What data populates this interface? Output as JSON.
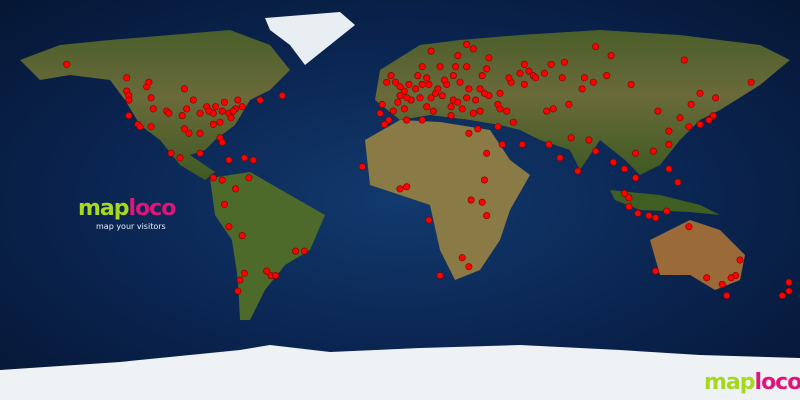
{
  "logo": {
    "part1": "map",
    "part2": "loco",
    "tagline": "map your visitors"
  },
  "corner_logo": {
    "part1": "map",
    "part2": "loco"
  },
  "colors": {
    "visitor_dot": "#ff0000",
    "logo_green": "#a8d81e",
    "logo_pink": "#e0157a",
    "ocean": "#0a2450"
  },
  "projection": "equirectangular",
  "visitors": [
    [
      -150,
      61
    ],
    [
      -123,
      49
    ],
    [
      -122,
      47
    ],
    [
      -122,
      45
    ],
    [
      -122,
      38
    ],
    [
      -118,
      34
    ],
    [
      -117,
      33
    ],
    [
      -112,
      33
    ],
    [
      -105,
      40
    ],
    [
      -97,
      32
    ],
    [
      -95,
      30
    ],
    [
      -90,
      30
    ],
    [
      -84,
      34
    ],
    [
      -81,
      28
    ],
    [
      -80,
      26
    ],
    [
      -77,
      39
    ],
    [
      -74,
      41
    ],
    [
      -71,
      42
    ],
    [
      -73,
      45
    ],
    [
      -79,
      44
    ],
    [
      -83,
      42
    ],
    [
      -87,
      42
    ],
    [
      -93,
      45
    ],
    [
      -90,
      39
    ],
    [
      -86,
      40
    ],
    [
      -81,
      35
    ],
    [
      -76,
      37
    ],
    [
      -75,
      40
    ],
    [
      -80,
      40
    ],
    [
      -84,
      39
    ],
    [
      -96,
      41
    ],
    [
      -98,
      38
    ],
    [
      -104,
      39
    ],
    [
      -111,
      41
    ],
    [
      -112,
      46
    ],
    [
      -114,
      51
    ],
    [
      -113,
      53
    ],
    [
      -123,
      55
    ],
    [
      -97,
      50
    ],
    [
      -63,
      45
    ],
    [
      -53,
      47
    ],
    [
      -99,
      19
    ],
    [
      -103,
      21
    ],
    [
      -90,
      21
    ],
    [
      -84,
      10
    ],
    [
      -77,
      18
    ],
    [
      -80,
      9
    ],
    [
      -70,
      19
    ],
    [
      -66,
      18
    ],
    [
      -74,
      5
    ],
    [
      -79,
      -2
    ],
    [
      -77,
      -12
    ],
    [
      -71,
      -16
    ],
    [
      -70,
      -33
    ],
    [
      -72,
      -36
    ],
    [
      -73,
      -41
    ],
    [
      -58,
      -34
    ],
    [
      -47,
      -23
    ],
    [
      -43,
      -23
    ],
    [
      -56,
      -34
    ],
    [
      -68,
      10
    ],
    [
      -60,
      -32
    ],
    [
      -9,
      39
    ],
    [
      -3,
      40
    ],
    [
      2,
      41
    ],
    [
      -8,
      43
    ],
    [
      -1,
      44
    ],
    [
      2,
      49
    ],
    [
      5,
      45
    ],
    [
      7,
      50
    ],
    [
      10,
      52
    ],
    [
      13,
      52
    ],
    [
      4,
      52
    ],
    [
      0,
      51
    ],
    [
      -2,
      53
    ],
    [
      -4,
      56
    ],
    [
      -6,
      53
    ],
    [
      9,
      46
    ],
    [
      12,
      42
    ],
    [
      15,
      40
    ],
    [
      14,
      46
    ],
    [
      16,
      48
    ],
    [
      19,
      47
    ],
    [
      21,
      52
    ],
    [
      17,
      50
    ],
    [
      24,
      45
    ],
    [
      23,
      42
    ],
    [
      26,
      44
    ],
    [
      28,
      41
    ],
    [
      23,
      38
    ],
    [
      18,
      60
    ],
    [
      10,
      60
    ],
    [
      25,
      60
    ],
    [
      24,
      56
    ],
    [
      30,
      60
    ],
    [
      37,
      56
    ],
    [
      31,
      50
    ],
    [
      36,
      50
    ],
    [
      40,
      47
    ],
    [
      44,
      43
    ],
    [
      50,
      53
    ],
    [
      49,
      55
    ],
    [
      60,
      56
    ],
    [
      61,
      55
    ],
    [
      73,
      55
    ],
    [
      83,
      55
    ],
    [
      87,
      53
    ],
    [
      93,
      56
    ],
    [
      104,
      52
    ],
    [
      82,
      50
    ],
    [
      76,
      43
    ],
    [
      69,
      41
    ],
    [
      66,
      40
    ],
    [
      51,
      35
    ],
    [
      44,
      33
    ],
    [
      46,
      25
    ],
    [
      55,
      25
    ],
    [
      35,
      32
    ],
    [
      31,
      30
    ],
    [
      36,
      40
    ],
    [
      33,
      39
    ],
    [
      39,
      21
    ],
    [
      12,
      55
    ],
    [
      8,
      56
    ],
    [
      20,
      54
    ],
    [
      27,
      53
    ],
    [
      38,
      48
    ],
    [
      45,
      48
    ],
    [
      56,
      52
    ],
    [
      54,
      57
    ],
    [
      65,
      57
    ],
    [
      74,
      62
    ],
    [
      30,
      46
    ],
    [
      34,
      45
    ],
    [
      39,
      59
    ],
    [
      33,
      68
    ],
    [
      30,
      70
    ],
    [
      26,
      65
    ],
    [
      14,
      67
    ],
    [
      3,
      46
    ],
    [
      0,
      47
    ],
    [
      -5,
      36
    ],
    [
      10,
      36
    ],
    [
      3,
      36
    ],
    [
      -7,
      34
    ],
    [
      45,
      41
    ],
    [
      48,
      40
    ],
    [
      58,
      58
    ],
    [
      40,
      64
    ],
    [
      56,
      61
    ],
    [
      68,
      61
    ],
    [
      88,
      69
    ],
    [
      95,
      65
    ],
    [
      128,
      63
    ],
    [
      135,
      48
    ],
    [
      131,
      43
    ],
    [
      142,
      46
    ],
    [
      158,
      53
    ],
    [
      77,
      28
    ],
    [
      72,
      19
    ],
    [
      80,
      13
    ],
    [
      88,
      22
    ],
    [
      85,
      27
    ],
    [
      67,
      25
    ],
    [
      101,
      14
    ],
    [
      106,
      10
    ],
    [
      106,
      21
    ],
    [
      114,
      22
    ],
    [
      121,
      31
    ],
    [
      116,
      40
    ],
    [
      126,
      37
    ],
    [
      139,
      36
    ],
    [
      135,
      34
    ],
    [
      130,
      33
    ],
    [
      141,
      38
    ],
    [
      121,
      25
    ],
    [
      121,
      14
    ],
    [
      103,
      1
    ],
    [
      107,
      -6
    ],
    [
      112,
      -7
    ],
    [
      115,
      -8
    ],
    [
      125,
      8
    ],
    [
      101,
      3
    ],
    [
      96,
      17
    ],
    [
      120,
      -5
    ],
    [
      103,
      -3
    ],
    [
      3,
      6
    ],
    [
      -17,
      15
    ],
    [
      32,
      0
    ],
    [
      37,
      -1
    ],
    [
      39,
      -7
    ],
    [
      28,
      -26
    ],
    [
      18,
      -34
    ],
    [
      31,
      -30
    ],
    [
      0,
      5
    ],
    [
      38,
      9
    ],
    [
      13,
      -9
    ],
    [
      115,
      -32
    ],
    [
      153,
      -27
    ],
    [
      151,
      -34
    ],
    [
      145,
      -38
    ],
    [
      138,
      -35
    ],
    [
      149,
      -35
    ],
    [
      147,
      -43
    ],
    [
      175,
      -37
    ],
    [
      175,
      -41
    ],
    [
      172,
      -43
    ],
    [
      130,
      -12
    ]
  ]
}
